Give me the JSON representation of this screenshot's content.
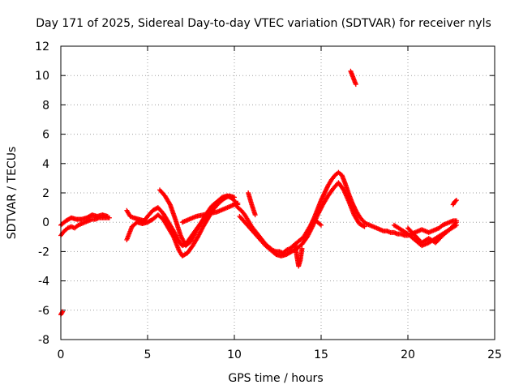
{
  "chart_data": {
    "type": "scatter",
    "title": "Day 171 of 2025, Sidereal Day-to-day VTEC variation (SDTVAR) for receiver nyls",
    "xlabel": "GPS time / hours",
    "ylabel": "SDTVAR / TECUs",
    "xlim": [
      0,
      25
    ],
    "ylim": [
      -8,
      12
    ],
    "xticks": [
      0,
      5,
      10,
      15,
      20,
      25
    ],
    "yticks": [
      -8,
      -6,
      -4,
      -2,
      0,
      2,
      4,
      6,
      8,
      10,
      12
    ],
    "grid": true,
    "marker": "plus",
    "color": "#ff0000",
    "series": [
      {
        "name": "SDTVAR",
        "segments": [
          {
            "x": [
              0.0,
              0.1
            ],
            "y": [
              -6.3,
              -6.1
            ]
          },
          {
            "x": [
              0.0,
              0.2,
              0.4,
              0.6,
              0.8,
              1.0,
              1.2,
              1.4,
              1.6,
              1.8,
              2.0,
              2.2,
              2.4,
              2.6,
              2.8
            ],
            "y": [
              -0.9,
              -0.6,
              -0.4,
              -0.3,
              -0.4,
              -0.2,
              -0.1,
              0.0,
              0.1,
              0.2,
              0.2,
              0.3,
              0.3,
              0.3,
              0.3
            ]
          },
          {
            "x": [
              0.0,
              0.3,
              0.6,
              0.9,
              1.2,
              1.5,
              1.8,
              2.1,
              2.4,
              2.7
            ],
            "y": [
              -0.2,
              0.1,
              0.3,
              0.2,
              0.2,
              0.3,
              0.5,
              0.4,
              0.5,
              0.4
            ]
          },
          {
            "x": [
              3.8,
              4.0,
              4.2,
              4.5,
              4.8,
              5.0,
              5.3,
              5.6,
              5.9,
              6.2,
              6.5,
              6.8,
              7.0,
              7.2,
              7.5,
              7.8,
              8.1,
              8.4,
              8.7,
              9.0,
              9.3,
              9.6,
              9.9,
              10.2
            ],
            "y": [
              0.8,
              0.4,
              0.3,
              0.2,
              0.1,
              0.4,
              0.8,
              1.0,
              0.6,
              0.0,
              -0.6,
              -1.3,
              -1.6,
              -1.5,
              -1.0,
              -0.5,
              0.0,
              0.6,
              1.1,
              1.4,
              1.7,
              1.8,
              1.6,
              1.2
            ]
          },
          {
            "x": [
              3.8,
              4.1,
              4.4,
              4.7,
              5.0,
              5.3,
              5.6,
              5.9,
              6.2,
              6.5,
              6.8,
              7.0,
              7.3,
              7.6,
              7.9,
              8.2,
              8.5,
              8.8,
              9.1,
              9.4,
              9.7,
              10.0
            ],
            "y": [
              -1.2,
              -0.3,
              0.0,
              -0.1,
              0.0,
              0.2,
              0.5,
              0.2,
              -0.4,
              -1.0,
              -1.9,
              -2.3,
              -2.1,
              -1.6,
              -1.0,
              -0.3,
              0.3,
              0.9,
              1.3,
              1.6,
              1.8,
              1.7
            ]
          },
          {
            "x": [
              5.7,
              6.0,
              6.3,
              6.6,
              6.9,
              7.2,
              7.5,
              7.8,
              8.1,
              8.4
            ],
            "y": [
              2.2,
              1.8,
              1.2,
              0.2,
              -0.9,
              -1.6,
              -1.3,
              -0.6,
              0.0,
              0.4
            ]
          },
          {
            "x": [
              7.0,
              7.4,
              7.8,
              8.2,
              8.6,
              9.0,
              9.4,
              9.8,
              10.2
            ],
            "y": [
              0.0,
              0.2,
              0.4,
              0.5,
              0.6,
              0.7,
              0.9,
              1.1,
              1.3
            ]
          },
          {
            "x": [
              10.0,
              10.2,
              10.4,
              10.6,
              10.8,
              11.0,
              11.2,
              11.4,
              11.6,
              11.8,
              12.0,
              12.2,
              12.4,
              12.6,
              12.8,
              13.0,
              13.2,
              13.4,
              13.6,
              13.8,
              14.0,
              14.2,
              14.4,
              14.6,
              14.8,
              15.0,
              15.2,
              15.4,
              15.6,
              15.8,
              16.0,
              16.2,
              16.4,
              16.6,
              16.8,
              17.0,
              17.2,
              17.4,
              17.6,
              17.8,
              18.0,
              18.2,
              18.4,
              18.6,
              18.8,
              19.0,
              19.2,
              19.4,
              19.6,
              19.8,
              20.0,
              20.2,
              20.4,
              20.6,
              20.8,
              21.0,
              21.2,
              21.4,
              21.6,
              21.8,
              22.0,
              22.2,
              22.4,
              22.6,
              22.8
            ],
            "y": [
              1.3,
              1.0,
              0.8,
              0.5,
              0.1,
              -0.3,
              -0.6,
              -0.9,
              -1.2,
              -1.5,
              -1.7,
              -1.9,
              -2.0,
              -2.0,
              -2.1,
              -1.9,
              -1.8,
              -1.6,
              -1.4,
              -1.2,
              -1.0,
              -0.6,
              -0.2,
              0.3,
              0.9,
              1.5,
              2.0,
              2.5,
              2.9,
              3.2,
              3.4,
              3.2,
              2.6,
              1.9,
              1.3,
              0.8,
              0.4,
              0.1,
              -0.1,
              -0.2,
              -0.3,
              -0.4,
              -0.5,
              -0.6,
              -0.6,
              -0.7,
              -0.7,
              -0.8,
              -0.8,
              -0.9,
              -0.9,
              -0.8,
              -0.7,
              -0.6,
              -0.5,
              -0.6,
              -0.7,
              -0.6,
              -0.5,
              -0.4,
              -0.2,
              -0.1,
              0.0,
              0.1,
              0.1
            ]
          },
          {
            "x": [
              10.3,
              10.6,
              10.9,
              11.2,
              11.5,
              11.8,
              12.1,
              12.4,
              12.7,
              13.0,
              13.3,
              13.6,
              13.9,
              14.2,
              14.5,
              14.8,
              15.1,
              15.4,
              15.7,
              16.0,
              16.3,
              16.6,
              16.9,
              17.2,
              17.5
            ],
            "y": [
              0.4,
              0.0,
              -0.4,
              -0.8,
              -1.2,
              -1.6,
              -1.9,
              -2.2,
              -2.3,
              -2.2,
              -2.0,
              -1.8,
              -1.5,
              -1.0,
              -0.3,
              0.5,
              1.2,
              1.8,
              2.3,
              2.7,
              2.2,
              1.4,
              0.5,
              -0.1,
              -0.3
            ]
          },
          {
            "x": [
              10.8,
              11.0,
              11.2
            ],
            "y": [
              2.0,
              1.2,
              0.5
            ]
          },
          {
            "x": [
              13.5,
              13.6,
              13.7,
              13.8,
              13.9
            ],
            "y": [
              -1.5,
              -2.3,
              -3.0,
              -2.6,
              -1.8
            ]
          },
          {
            "x": [
              14.6,
              14.8,
              15.0
            ],
            "y": [
              0.2,
              0.0,
              -0.2
            ]
          },
          {
            "x": [
              16.7,
              16.8,
              16.9,
              17.0
            ],
            "y": [
              10.3,
              10.0,
              9.7,
              9.4
            ]
          },
          {
            "x": [
              19.2,
              19.6,
              20.0,
              20.4,
              20.8,
              21.2,
              21.6,
              22.0,
              22.4,
              22.8
            ],
            "y": [
              -0.2,
              -0.5,
              -0.8,
              -1.2,
              -1.6,
              -1.4,
              -1.1,
              -0.8,
              -0.5,
              -0.2
            ]
          },
          {
            "x": [
              20.0,
              20.4,
              20.8,
              21.2,
              21.6,
              22.0,
              22.4,
              22.8
            ],
            "y": [
              -0.4,
              -0.9,
              -1.4,
              -1.1,
              -1.4,
              -0.9,
              -0.5,
              0.0
            ]
          },
          {
            "x": [
              22.6,
              22.7,
              22.8
            ],
            "y": [
              1.2,
              1.4,
              1.5
            ]
          }
        ]
      }
    ]
  }
}
